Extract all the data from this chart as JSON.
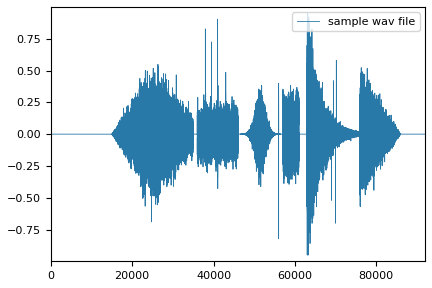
{
  "line_color": "#2878a8",
  "legend_label": "sample wav file",
  "xlim": [
    0,
    92000
  ],
  "ylim": [
    -1.0,
    1.0
  ],
  "xticks": [
    0,
    20000,
    40000,
    60000,
    80000
  ],
  "yticks": [
    -0.75,
    -0.5,
    -0.25,
    0.0,
    0.25,
    0.5,
    0.75
  ],
  "figsize": [
    4.32,
    2.88
  ],
  "dpi": 100,
  "background_color": "#ffffff",
  "linewidth": 0.6,
  "sample_rate": 92000,
  "num_samples": 92000
}
